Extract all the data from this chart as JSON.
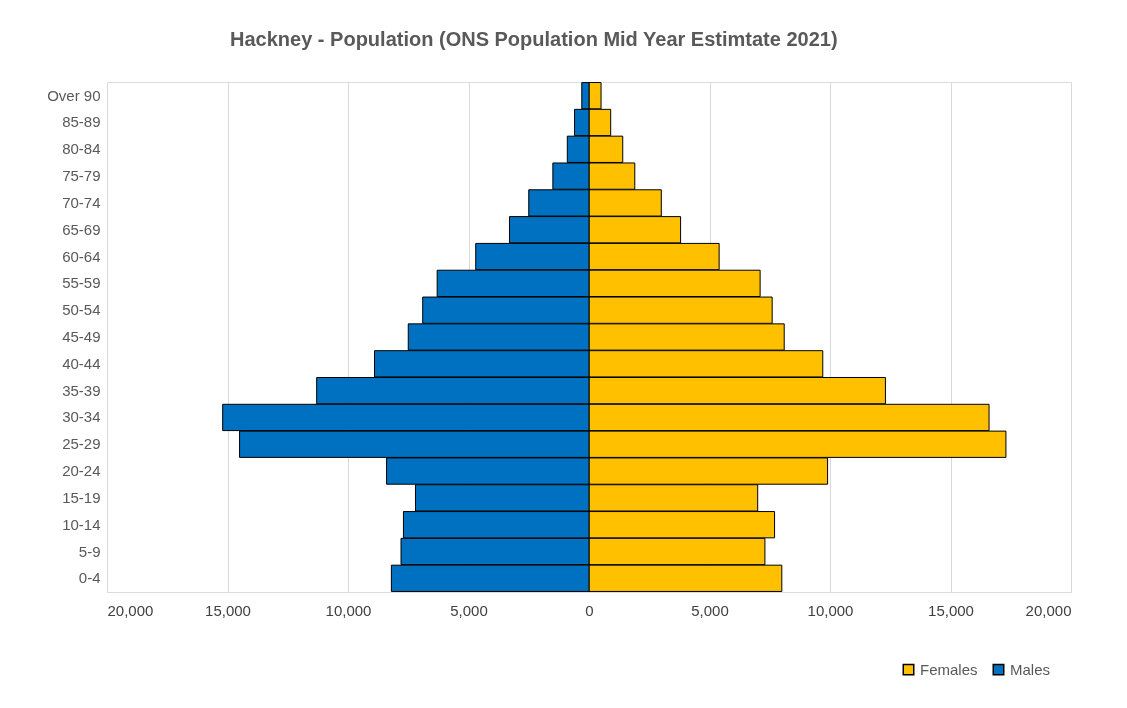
{
  "chart_data": {
    "type": "bar",
    "title": "Hackney -  Population (ONS Population Mid Year Estimtate 2021)",
    "orientation": "horizontal",
    "stacked": true,
    "categories": [
      "Over 90",
      "85-89",
      "80-84",
      "75-79",
      "70-74",
      "65-69",
      "60-64",
      "55-59",
      "50-54",
      "45-49",
      "40-44",
      "35-39",
      "30-34",
      "25-29",
      "20-24",
      "15-19",
      "10-14",
      "5-9",
      "0-4"
    ],
    "series": [
      {
        "name": "Females",
        "color": "#ffc000",
        "values": [
          500,
          900,
          1400,
          1900,
          3000,
          3800,
          5400,
          7100,
          7600,
          8100,
          9700,
          12300,
          16600,
          17300,
          9900,
          7000,
          7700,
          7300,
          8000
        ]
      },
      {
        "name": "Males",
        "color": "#0070c0",
        "values": [
          -300,
          -600,
          -900,
          -1500,
          -2500,
          -3300,
          -4700,
          -6300,
          -6900,
          -7500,
          -8900,
          -11300,
          -15200,
          -14500,
          -8400,
          -7200,
          -7700,
          -7800,
          -8200
        ]
      }
    ],
    "xlim": [
      -20000,
      20000
    ],
    "xticks": [
      {
        "value": -20000,
        "label": "20,000"
      },
      {
        "value": -15000,
        "label": "15,000"
      },
      {
        "value": -10000,
        "label": "10,000"
      },
      {
        "value": -5000,
        "label": "5,000"
      },
      0,
      {
        "value": 5000,
        "label": "5,000"
      },
      {
        "value": 10000,
        "label": "10,000"
      },
      {
        "value": 15000,
        "label": "15,000"
      },
      {
        "value": 20000,
        "label": "20,000"
      }
    ],
    "grid": "x",
    "legend": "bottom right"
  }
}
